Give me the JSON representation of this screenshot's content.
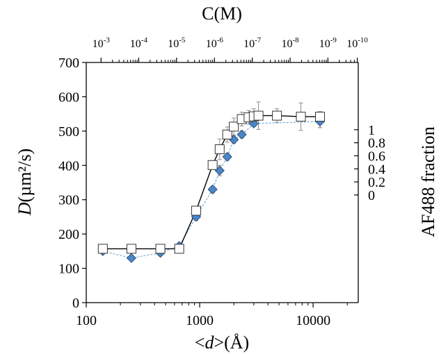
{
  "chart_data": {
    "type": "scatter",
    "xlabel": {
      "prefix": "<",
      "var": "d",
      "suffix": ">(Å)"
    },
    "ylabel": {
      "var": "D",
      "unit": "(µm²/s)"
    },
    "top_xlabel": "C(M)",
    "right_ylabel": "AF488 fraction",
    "x_scale": "log",
    "xlim": [
      100,
      25000
    ],
    "ylim": [
      0,
      700
    ],
    "x_ticks": [
      {
        "value": 100,
        "label": "100"
      },
      {
        "value": 1000,
        "label": "1000"
      },
      {
        "value": 10000,
        "label": "10000"
      }
    ],
    "y_ticks": [
      {
        "value": 0,
        "label": "0"
      },
      {
        "value": 100,
        "label": "100"
      },
      {
        "value": 200,
        "label": "200"
      },
      {
        "value": 300,
        "label": "300"
      },
      {
        "value": 400,
        "label": "400"
      },
      {
        "value": 500,
        "label": "500"
      },
      {
        "value": 600,
        "label": "600"
      },
      {
        "value": 700,
        "label": "700"
      }
    ],
    "right_axis": {
      "ylim_at_left_0": -1.65,
      "ylim_at_left_700": 2.03,
      "ticks": [
        {
          "value": 0,
          "label": "0"
        },
        {
          "value": 0.2,
          "label": "0.2"
        },
        {
          "value": 0.4,
          "label": "0.4"
        },
        {
          "value": 0.6,
          "label": "0.6"
        },
        {
          "value": 0.8,
          "label": "0.8"
        },
        {
          "value": 1,
          "label": "1"
        }
      ]
    },
    "top_axis": {
      "ticks": [
        {
          "exp": "-3",
          "d": 135
        },
        {
          "exp": "-4",
          "d": 290
        },
        {
          "exp": "-5",
          "d": 625
        },
        {
          "exp": "-6",
          "d": 1350
        },
        {
          "exp": "-7",
          "d": 2910
        },
        {
          "exp": "-8",
          "d": 6270
        },
        {
          "exp": "-9",
          "d": 13500
        },
        {
          "exp": "-10",
          "d": 24500
        }
      ],
      "mantissa": "10"
    },
    "series": [
      {
        "marker": "diamond",
        "color": "#4a86c8",
        "line_style": "dashed",
        "line_color": "#5b9bd5",
        "points": [
          {
            "x": 140,
            "y": 150,
            "err": 0
          },
          {
            "x": 250,
            "y": 130,
            "err": 0
          },
          {
            "x": 450,
            "y": 145,
            "err": 0
          },
          {
            "x": 660,
            "y": 165,
            "err": 0
          },
          {
            "x": 930,
            "y": 250,
            "err": 10
          },
          {
            "x": 1300,
            "y": 330,
            "err": 10
          },
          {
            "x": 1500,
            "y": 385,
            "err": 15
          },
          {
            "x": 1750,
            "y": 425,
            "err": 10
          },
          {
            "x": 2000,
            "y": 475,
            "err": 10
          },
          {
            "x": 2350,
            "y": 490,
            "err": 10
          },
          {
            "x": 3000,
            "y": 522,
            "err": 8
          },
          {
            "x": 11500,
            "y": 528,
            "err": 18
          }
        ]
      },
      {
        "marker": "square",
        "color": "#ffffff",
        "line_style": "solid",
        "line_color": "#000000",
        "points": [
          {
            "x": 140,
            "y": 157,
            "err": 0
          },
          {
            "x": 250,
            "y": 157,
            "err": 0
          },
          {
            "x": 450,
            "y": 157,
            "err": 0
          },
          {
            "x": 660,
            "y": 157,
            "err": 0
          },
          {
            "x": 930,
            "y": 268,
            "err": 0
          },
          {
            "x": 1300,
            "y": 401,
            "err": 0
          },
          {
            "x": 1500,
            "y": 447,
            "err": 30
          },
          {
            "x": 1750,
            "y": 490,
            "err": 22
          },
          {
            "x": 2000,
            "y": 513,
            "err": 25
          },
          {
            "x": 2350,
            "y": 535,
            "err": 20
          },
          {
            "x": 2700,
            "y": 540,
            "err": 20
          },
          {
            "x": 3000,
            "y": 543,
            "err": 22
          },
          {
            "x": 3300,
            "y": 545,
            "err": 40
          },
          {
            "x": 4800,
            "y": 545,
            "err": 20
          },
          {
            "x": 7800,
            "y": 542,
            "err": 40
          },
          {
            "x": 11500,
            "y": 542,
            "err": 15
          }
        ]
      }
    ]
  }
}
